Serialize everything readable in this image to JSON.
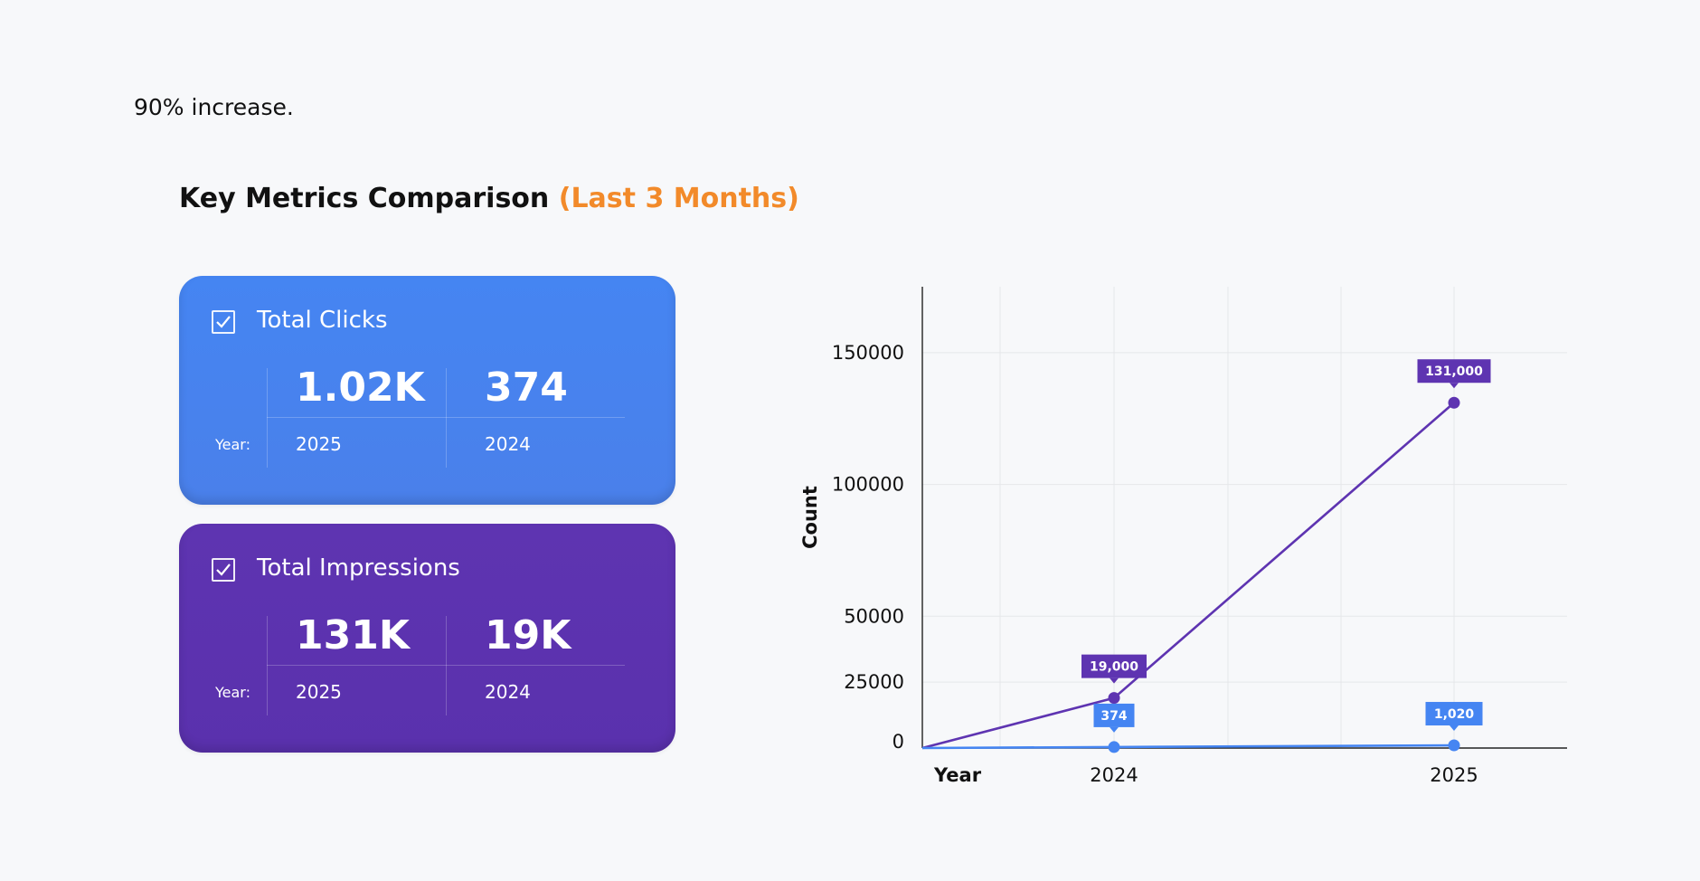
{
  "intro_text": "90% increase.",
  "section": {
    "title": "Key Metrics Comparison",
    "title_accent": "(Last 3 Months)"
  },
  "cards": [
    {
      "title": "Total Clicks",
      "year_label": "Year:",
      "value_current": "1.02K",
      "value_previous": "374",
      "year_current": "2025",
      "year_previous": "2024",
      "color": "#4585f2"
    },
    {
      "title": "Total Impressions",
      "year_label": "Year:",
      "value_current": "131K",
      "value_previous": "19K",
      "year_current": "2025",
      "year_previous": "2024",
      "color": "#5e34b1"
    }
  ],
  "icons": {
    "card_checkbox": "checkbox-checked-icon"
  },
  "chart_data": {
    "type": "line",
    "x": [
      "2024",
      "2025"
    ],
    "xlabel": "Year",
    "ylabel": "Count",
    "yticks": [
      0,
      25000,
      50000,
      100000,
      150000
    ],
    "ylim": [
      0,
      175000
    ],
    "grid": true,
    "series": [
      {
        "values": [
          19000,
          131000
        ],
        "labels": [
          "19,000",
          "131,000"
        ],
        "color": "#5e34b1"
      },
      {
        "values": [
          374,
          1020
        ],
        "labels": [
          "374",
          "1,020"
        ],
        "color": "#4585f2"
      }
    ]
  }
}
